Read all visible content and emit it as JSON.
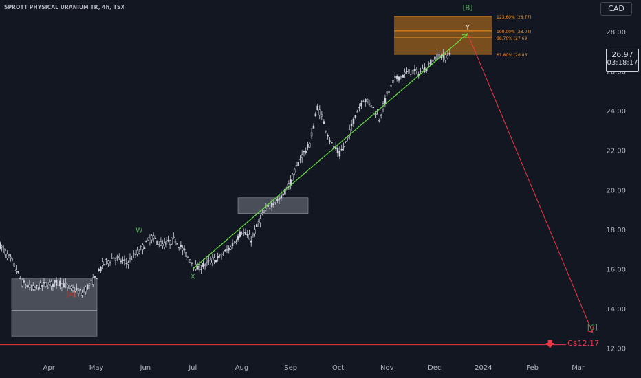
{
  "header": {
    "symbol_title": "SPROTT PHYSICAL URANIUM TR, 4h, TSX",
    "currency_button": "CAD"
  },
  "last_price": {
    "value": "26.97",
    "countdown": "03:18:17"
  },
  "target": {
    "label": "C$12.17",
    "value": 12.17
  },
  "colors": {
    "background": "#131722",
    "candle": "#d1d4dc",
    "wave_green": "#4caf50",
    "projection_red": "#f23645",
    "fib_orange": "#f7931a",
    "support_box": "#787b86"
  },
  "chart_data": {
    "type": "line",
    "title": "SPROTT PHYSICAL URANIUM TR, 4h, TSX",
    "xlabel": "",
    "ylabel": "",
    "currency": "CAD",
    "ylim": [
      11.6,
      29.6
    ],
    "y_ticks": [
      12,
      14,
      16,
      18,
      20,
      22,
      24,
      26,
      28
    ],
    "y_tick_labels": [
      "12.00",
      "14.00",
      "16.00",
      "18.00",
      "20.00",
      "22.00",
      "24.00",
      "26.00",
      "28.00"
    ],
    "x_ticks": [
      "2023-04-01",
      "2023-05-01",
      "2023-06-01",
      "2023-07-01",
      "2023-08-01",
      "2023-09-01",
      "2023-10-01",
      "2023-11-01",
      "2023-12-01",
      "2024-01-01",
      "2024-02-01",
      "2024-03-01"
    ],
    "x_tick_labels": [
      "Apr",
      "May",
      "Jun",
      "Jul",
      "Aug",
      "Sep",
      "Oct",
      "Nov",
      "Dec",
      "2024",
      "Feb",
      "Mar"
    ],
    "xlim": [
      "2023-03-01",
      "2024-03-12"
    ],
    "price_series": {
      "name": "",
      "x": [
        "2023-03-01",
        "2023-03-10",
        "2023-03-15",
        "2023-03-22",
        "2023-03-30",
        "2023-04-08",
        "2023-04-15",
        "2023-04-22",
        "2023-04-30",
        "2023-05-05",
        "2023-05-12",
        "2023-05-20",
        "2023-05-28",
        "2023-06-05",
        "2023-06-12",
        "2023-06-20",
        "2023-06-28",
        "2023-07-04",
        "2023-07-10",
        "2023-07-18",
        "2023-07-25",
        "2023-08-01",
        "2023-08-07",
        "2023-08-14",
        "2023-08-20",
        "2023-08-26",
        "2023-09-01",
        "2023-09-07",
        "2023-09-13",
        "2023-09-18",
        "2023-09-22",
        "2023-09-27",
        "2023-10-02",
        "2023-10-07",
        "2023-10-12",
        "2023-10-17",
        "2023-10-22",
        "2023-10-27",
        "2023-11-01",
        "2023-11-06",
        "2023-11-11",
        "2023-11-16",
        "2023-11-21",
        "2023-11-26",
        "2023-11-30",
        "2023-12-04",
        "2023-12-08",
        "2023-12-12"
      ],
      "values": [
        17.2,
        16.2,
        15.3,
        15.0,
        15.2,
        15.3,
        15.0,
        14.8,
        15.5,
        16.2,
        16.6,
        16.3,
        16.9,
        17.6,
        17.2,
        17.5,
        16.6,
        16.0,
        16.3,
        16.6,
        17.1,
        17.9,
        17.5,
        18.7,
        19.3,
        19.6,
        20.4,
        21.6,
        22.3,
        24.2,
        23.4,
        22.3,
        21.8,
        22.6,
        23.8,
        24.6,
        24.3,
        23.6,
        24.8,
        25.6,
        25.8,
        26.0,
        25.9,
        26.2,
        26.6,
        26.8,
        26.7,
        26.97
      ]
    },
    "waves": {
      "points": [
        {
          "label": "W",
          "date": "2023-05-28",
          "value": 17.7
        },
        {
          "label": "X",
          "date": "2023-07-01",
          "value": 16.0
        },
        {
          "label": "Y",
          "date": "2023-12-22",
          "value": 27.9
        },
        {
          "label": "[C]",
          "date": "2024-03-10",
          "value": 12.8
        }
      ],
      "markers": [
        {
          "label": "[A]",
          "date": "2023-04-15",
          "value": 14.6
        },
        {
          "label": "[B]",
          "date": "2023-12-22",
          "value": 29.1
        }
      ]
    },
    "fib_levels": [
      {
        "label": "123.60% (28.77)",
        "value": 28.77
      },
      {
        "label": "100.00% (28.04)",
        "value": 28.04
      },
      {
        "label": "88.70% (27.69)",
        "value": 27.69
      },
      {
        "label": "61.80% (26.86)",
        "value": 26.86
      }
    ],
    "zones": [
      {
        "name": "support",
        "date_from": "2023-03-01",
        "date_to": "2023-05-01",
        "low": 12.6,
        "high": 15.5
      },
      {
        "name": "breakout",
        "date_from": "2023-08-01",
        "date_to": "2023-09-01",
        "low": 18.8,
        "high": 19.6
      }
    ],
    "horizontal_lines": [
      {
        "name": "target",
        "value": 12.17
      }
    ],
    "grid": false,
    "legend": "none"
  }
}
